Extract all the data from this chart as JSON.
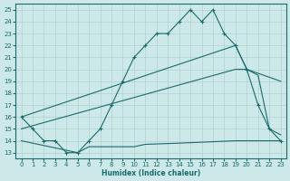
{
  "bg_color": "#cde8e8",
  "line_color": "#1a6b6b",
  "grid_color": "#b0d0d0",
  "xlabel": "Humidex (Indice chaleur)",
  "xlim": [
    -0.5,
    23.5
  ],
  "ylim": [
    12.5,
    25.5
  ],
  "yticks": [
    13,
    14,
    15,
    16,
    17,
    18,
    19,
    20,
    21,
    22,
    23,
    24,
    25
  ],
  "xticks": [
    0,
    1,
    2,
    3,
    4,
    5,
    6,
    7,
    8,
    9,
    10,
    11,
    12,
    13,
    14,
    15,
    16,
    17,
    18,
    19,
    20,
    21,
    22,
    23
  ],
  "line1_x": [
    0,
    1,
    2,
    3,
    4,
    5,
    6,
    7,
    8,
    9,
    10,
    11,
    12,
    13,
    14,
    15,
    16,
    17,
    18,
    19,
    20,
    21,
    22,
    23
  ],
  "line1_y": [
    16,
    15,
    14,
    14,
    13,
    13,
    14,
    15,
    17,
    19,
    21,
    22,
    23,
    23,
    24,
    25,
    24,
    25,
    23,
    22,
    20,
    17,
    15,
    14
  ],
  "line2_x": [
    0,
    19,
    20,
    23
  ],
  "line2_y": [
    16,
    22,
    20,
    19
  ],
  "line3_x": [
    0,
    19,
    20,
    21,
    22,
    23
  ],
  "line3_y": [
    15,
    20,
    20,
    19.5,
    15,
    14.5
  ],
  "line4_x": [
    0,
    5,
    6,
    10,
    11,
    14,
    19,
    20,
    21,
    22,
    23
  ],
  "line4_y": [
    14,
    13,
    13.5,
    13.5,
    13.7,
    13.8,
    14,
    14,
    14,
    14,
    14
  ]
}
